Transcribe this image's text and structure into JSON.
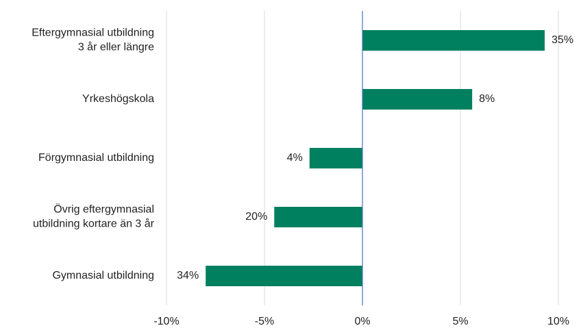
{
  "chart_data": {
    "type": "bar",
    "orientation": "horizontal",
    "categories": [
      [
        "Eftergymnasial utbildning",
        "3 år eller längre"
      ],
      [
        "Yrkeshögskola"
      ],
      [
        "Förgymnasial utbildning"
      ],
      [
        "Övrig eftergymnasial",
        "utbildning kortare än 3 år"
      ],
      [
        "Gymnasial utbildning"
      ]
    ],
    "values": [
      9.3,
      5.6,
      -2.7,
      -4.5,
      -8.0
    ],
    "annotations": [
      "35%",
      "8%",
      "4%",
      "20%",
      "34%"
    ],
    "color": "#00805f",
    "zero_line_color": "#4472c4",
    "xlim": [
      -10,
      10
    ],
    "xticks": [
      {
        "value": -10,
        "label": "-10%"
      },
      {
        "value": -5,
        "label": "-5%"
      },
      {
        "value": 0,
        "label": "0%"
      },
      {
        "value": 5,
        "label": "5%"
      },
      {
        "value": 10,
        "label": "10%"
      }
    ],
    "grid": true
  }
}
